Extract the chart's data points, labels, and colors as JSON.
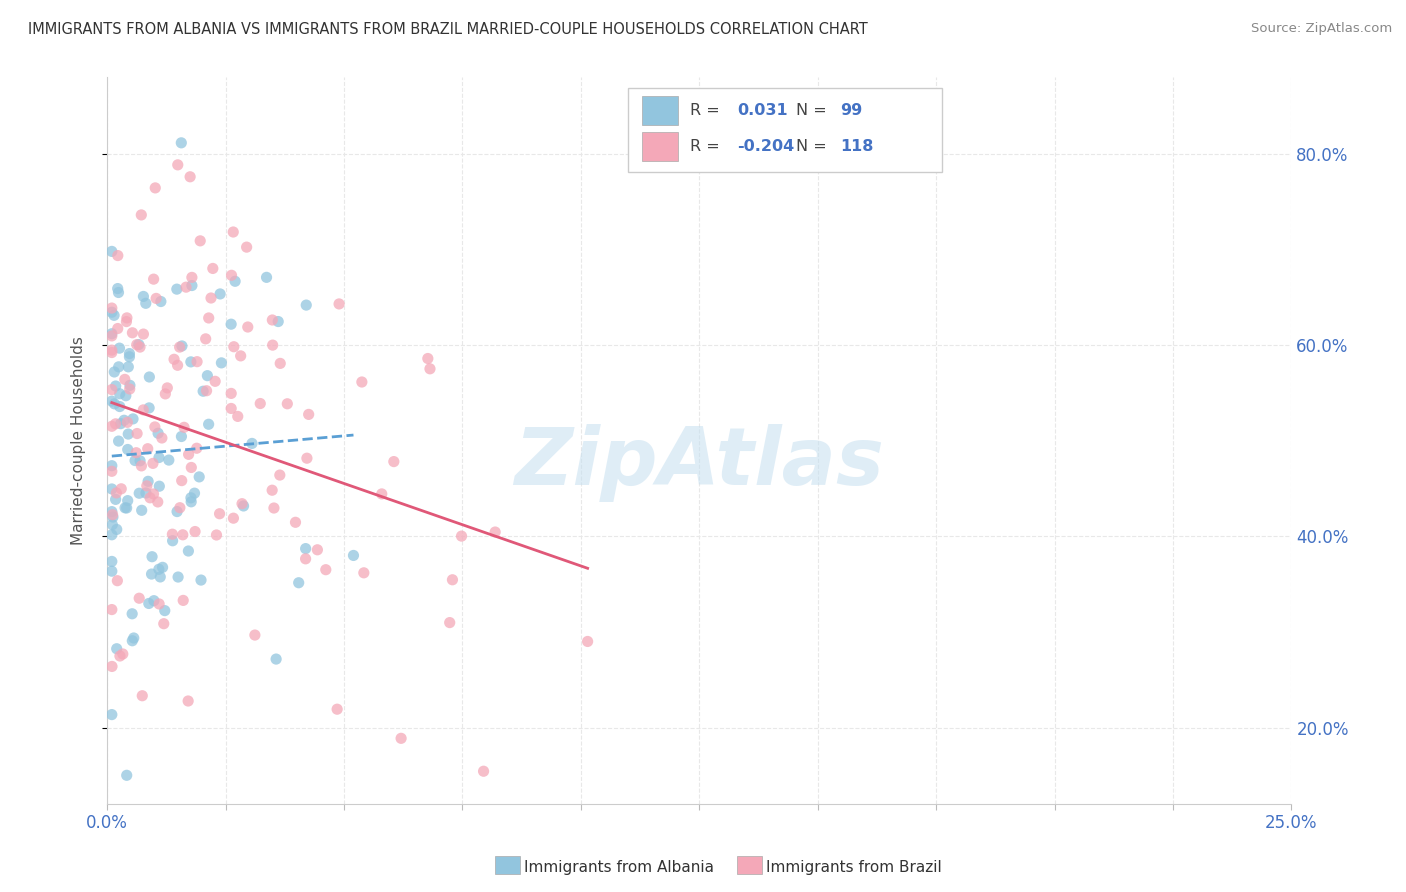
{
  "title": "IMMIGRANTS FROM ALBANIA VS IMMIGRANTS FROM BRAZIL MARRIED-COUPLE HOUSEHOLDS CORRELATION CHART",
  "source": "Source: ZipAtlas.com",
  "ylabel": "Married-couple Households",
  "xlim": [
    0.0,
    0.25
  ],
  "ylim": [
    0.12,
    0.88
  ],
  "yticks": [
    0.2,
    0.4,
    0.6,
    0.8
  ],
  "yticklabels": [
    "20.0%",
    "40.0%",
    "60.0%",
    "80.0%"
  ],
  "albania_color": "#92c5de",
  "brazil_color": "#f4a8b8",
  "albania_line_color": "#5a9fd4",
  "brazil_line_color": "#e05878",
  "albania_R": 0.031,
  "albania_N": 99,
  "brazil_R": -0.204,
  "brazil_N": 118,
  "watermark": "ZipAtlas",
  "title_color": "#333333",
  "tick_color": "#4472c4",
  "grid_color": "#e8e8e8"
}
